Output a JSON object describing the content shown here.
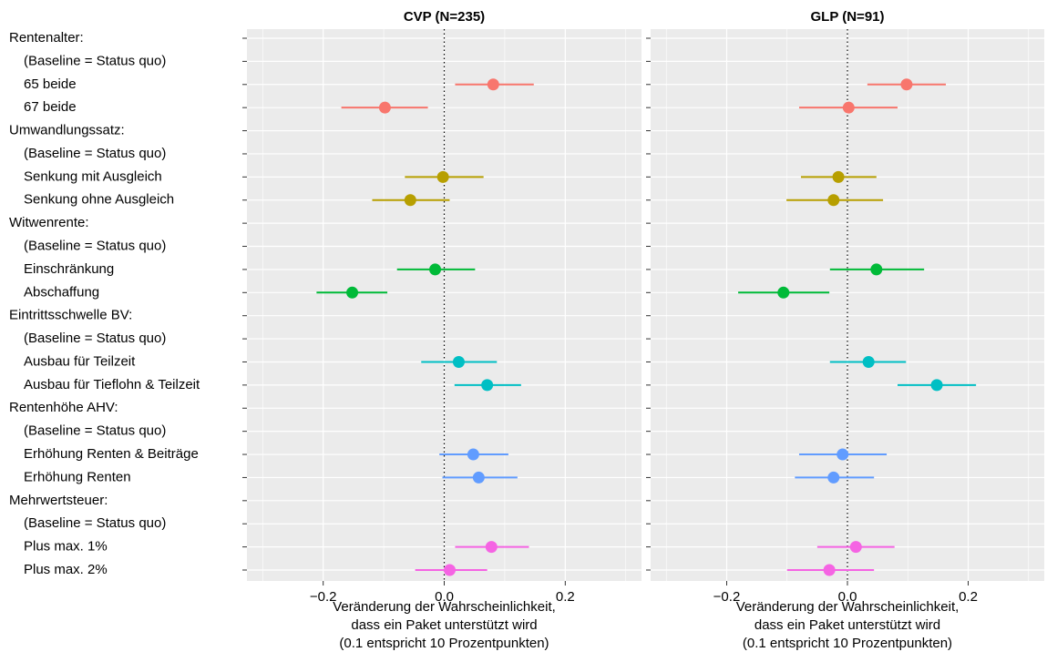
{
  "chart_data": {
    "type": "pointrange",
    "categories": [
      "Rentenalter:",
      "(Baseline = Status quo)",
      "65 beide",
      "67 beide",
      "Umwandlungssatz:",
      "(Baseline = Status quo)",
      "Senkung mit Ausgleich",
      "Senkung ohne Ausgleich",
      "Witwenrente:",
      "(Baseline = Status quo)",
      "Einschränkung",
      "Abschaffung",
      "Eintrittsschwelle BV:",
      "(Baseline = Status quo)",
      "Ausbau für Teilzeit",
      "Ausbau für Tieflohn & Teilzeit",
      "Rentenhöhe AHV:",
      "(Baseline = Status quo)",
      "Erhöhung Renten & Beiträge",
      "Erhöhung Renten",
      "Mehrwertsteuer:",
      "(Baseline = Status quo)",
      "Plus max. 1%",
      "Plus max. 2%"
    ],
    "colors": [
      null,
      "#F8766D",
      "#F8766D",
      "#F8766D",
      null,
      "#B79F00",
      "#B79F00",
      "#B79F00",
      null,
      "#00BA38",
      "#00BA38",
      "#00BA38",
      null,
      "#00BFC4",
      "#00BFC4",
      "#00BFC4",
      null,
      "#619CFF",
      "#619CFF",
      "#619CFF",
      null,
      "#F564E3",
      "#F564E3",
      "#F564E3"
    ],
    "xlabel": "Veränderung der Wahrscheinlichkeit,\ndass ein Paket unterstützt wird\n(0.1 entspricht 10 Prozentpunkten)",
    "xlim": [
      -0.326,
      0.326
    ],
    "xticks": [
      {
        "value": -0.2,
        "label": "−0.2"
      },
      {
        "value": 0,
        "label": "0.0"
      },
      {
        "value": 0.2,
        "label": "0.2"
      }
    ],
    "minor_xticks": [
      -0.3,
      -0.1,
      0.1,
      0.3
    ],
    "reference_line": 0,
    "grid": true,
    "facets": [
      {
        "title": "CVP (N=235)",
        "estimate": [
          null,
          null,
          0.081,
          -0.098,
          null,
          null,
          -0.002,
          -0.056,
          null,
          null,
          -0.015,
          -0.152,
          null,
          null,
          0.024,
          0.071,
          null,
          null,
          0.048,
          0.057,
          null,
          null,
          0.078,
          0.009
        ],
        "lower": [
          null,
          null,
          0.018,
          -0.17,
          null,
          null,
          -0.065,
          -0.119,
          null,
          null,
          -0.078,
          -0.211,
          null,
          null,
          -0.038,
          0.017,
          null,
          null,
          -0.008,
          -0.003,
          null,
          null,
          0.018,
          -0.048
        ],
        "upper": [
          null,
          null,
          0.148,
          -0.027,
          null,
          null,
          0.065,
          0.009,
          null,
          null,
          0.051,
          -0.094,
          null,
          null,
          0.087,
          0.127,
          null,
          null,
          0.106,
          0.121,
          null,
          null,
          0.14,
          0.071
        ]
      },
      {
        "title": "GLP (N=91)",
        "estimate": [
          null,
          null,
          0.098,
          0.002,
          null,
          null,
          -0.015,
          -0.023,
          null,
          null,
          0.048,
          -0.106,
          null,
          null,
          0.035,
          0.148,
          null,
          null,
          -0.008,
          -0.023,
          null,
          null,
          0.014,
          -0.03
        ],
        "lower": [
          null,
          null,
          0.033,
          -0.08,
          null,
          null,
          -0.077,
          -0.101,
          null,
          null,
          -0.029,
          -0.181,
          null,
          null,
          -0.029,
          0.083,
          null,
          null,
          -0.08,
          -0.087,
          null,
          null,
          -0.05,
          -0.1
        ],
        "upper": [
          null,
          null,
          0.163,
          0.083,
          null,
          null,
          0.048,
          0.059,
          null,
          null,
          0.127,
          -0.03,
          null,
          null,
          0.097,
          0.213,
          null,
          null,
          0.065,
          0.044,
          null,
          null,
          0.078,
          0.044
        ]
      }
    ]
  }
}
